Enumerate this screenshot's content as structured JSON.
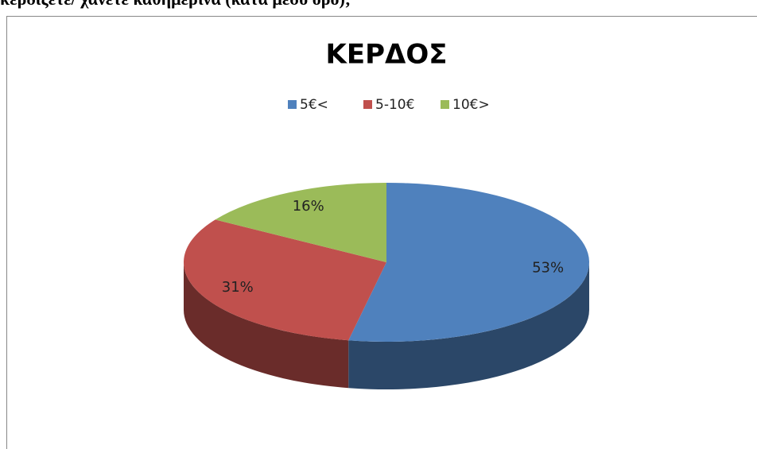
{
  "document": {
    "question": "κερδίζετε/ χάνετε καθημερινά (κατά μέσο όρο);"
  },
  "chart_data": {
    "type": "pie",
    "title": "ΚΕΡΔΟΣ",
    "categories": [
      "5€<",
      "5-10€",
      "10€>"
    ],
    "values": [
      53,
      31,
      16
    ],
    "value_labels": [
      "53%",
      "31%",
      "16%"
    ],
    "colors": [
      "#4f81bd",
      "#c0504d",
      "#9bbb59"
    ],
    "legend": "top"
  }
}
